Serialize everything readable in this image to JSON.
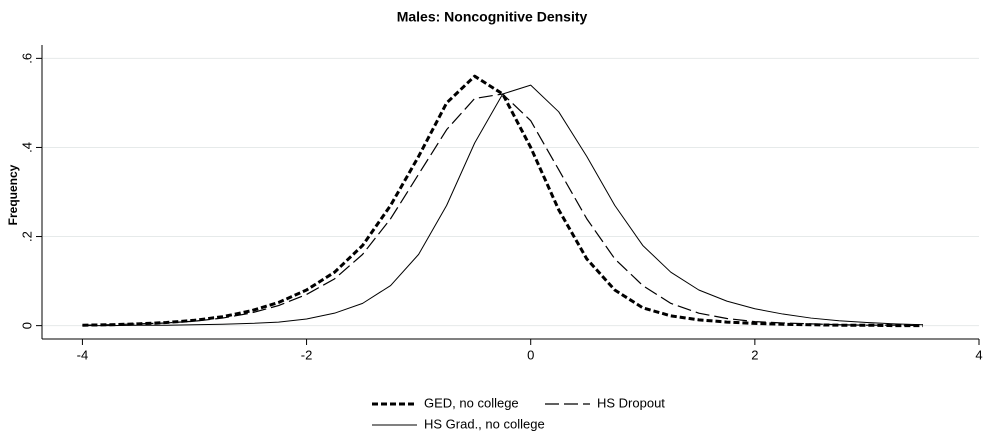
{
  "chart_data": {
    "type": "line",
    "title": "Males: Noncognitive Density",
    "y_label": "Frequency",
    "x": [
      -4,
      -3.75,
      -3.5,
      -3.25,
      -3,
      -2.75,
      -2.5,
      -2.25,
      -2,
      -1.75,
      -1.5,
      -1.25,
      -1,
      -0.75,
      -0.5,
      -0.25,
      0,
      0.25,
      0.5,
      0.75,
      1,
      1.25,
      1.5,
      1.75,
      2,
      2.25,
      2.5,
      2.75,
      3,
      3.25,
      3.5
    ],
    "series": [
      {
        "name": "GED, no college",
        "color": "#000000",
        "dash": "short",
        "values": [
          0.001,
          0.002,
          0.004,
          0.007,
          0.012,
          0.02,
          0.033,
          0.052,
          0.08,
          0.12,
          0.18,
          0.27,
          0.38,
          0.5,
          0.56,
          0.52,
          0.4,
          0.26,
          0.15,
          0.08,
          0.04,
          0.022,
          0.013,
          0.008,
          0.005,
          0.003,
          0.002,
          0.001,
          0.001,
          0,
          0
        ]
      },
      {
        "name": "HS Dropout",
        "color": "#000000",
        "dash": "long",
        "values": [
          0.001,
          0.002,
          0.004,
          0.006,
          0.01,
          0.017,
          0.028,
          0.045,
          0.07,
          0.105,
          0.16,
          0.24,
          0.34,
          0.44,
          0.51,
          0.52,
          0.46,
          0.35,
          0.24,
          0.15,
          0.09,
          0.05,
          0.028,
          0.016,
          0.009,
          0.006,
          0.004,
          0.002,
          0.001,
          0.001,
          0
        ]
      },
      {
        "name": "HS Grad., no college",
        "color": "#000000",
        "dash": "solid",
        "values": [
          0,
          0,
          0.001,
          0.001,
          0.002,
          0.003,
          0.005,
          0.008,
          0.015,
          0.028,
          0.05,
          0.09,
          0.16,
          0.27,
          0.41,
          0.52,
          0.54,
          0.48,
          0.38,
          0.27,
          0.18,
          0.12,
          0.08,
          0.055,
          0.038,
          0.026,
          0.017,
          0.011,
          0.007,
          0.004,
          0.002
        ]
      }
    ],
    "xlim": [
      -4.2,
      4
    ],
    "xticks": [
      -4,
      -2,
      0,
      2,
      4
    ],
    "ylim": [
      -0.03,
      0.63
    ],
    "yticks": [
      0,
      {
        "value": 0.2,
        "label": ".2"
      },
      {
        "value": 0.4,
        "label": ".4"
      },
      {
        "value": 0.6,
        "label": ".6"
      }
    ],
    "grid": true,
    "legend": "bottom"
  }
}
